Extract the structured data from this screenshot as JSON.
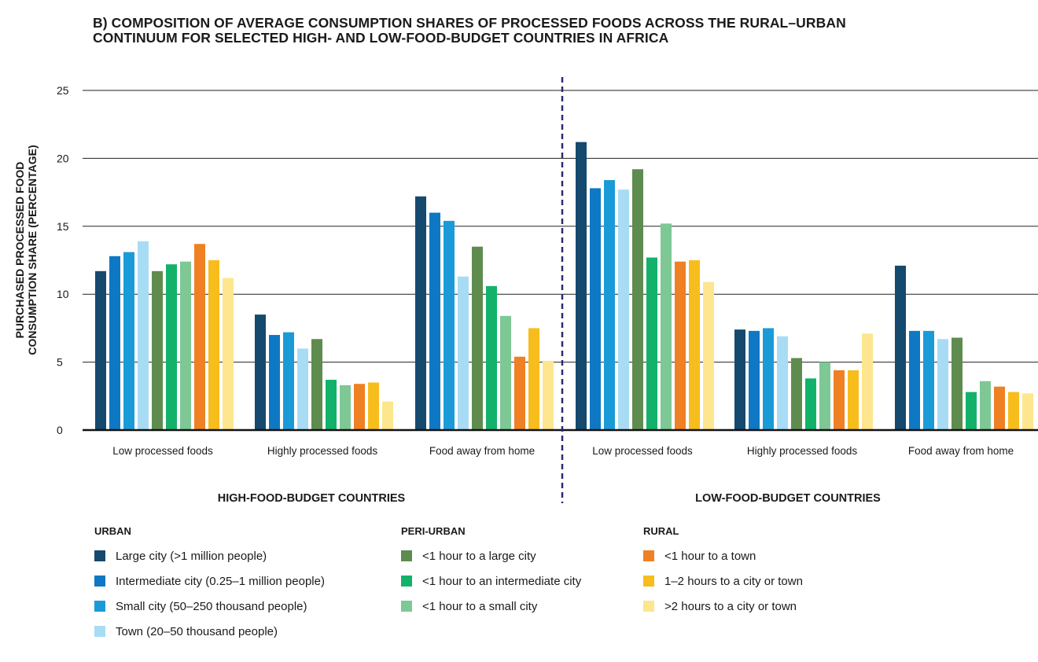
{
  "title_lines": [
    "B) COMPOSITION OF AVERAGE CONSUMPTION SHARES OF PROCESSED FOODS ACROSS THE RURAL–URBAN",
    "CONTINUUM FOR SELECTED HIGH- AND LOW-FOOD-BUDGET COUNTRIES IN AFRICA"
  ],
  "legend": {
    "groups": [
      {
        "heading": "URBAN",
        "items": [
          {
            "label": "Large city (>1 million people)",
            "color": "#16496e"
          },
          {
            "label": "Intermediate city (0.25–1 million people)",
            "color": "#0e78c4"
          },
          {
            "label": "Small city (50–250 thousand people)",
            "color": "#1a9bd7"
          },
          {
            "label": "Town (20–50 thousand people)",
            "color": "#a8dcf4"
          }
        ]
      },
      {
        "heading": "PERI-URBAN",
        "items": [
          {
            "label": "<1 hour to a large city",
            "color": "#5e8c4f"
          },
          {
            "label": "<1 hour to an intermediate city",
            "color": "#12b26a"
          },
          {
            "label": "<1 hour to a small city",
            "color": "#7dc895"
          }
        ]
      },
      {
        "heading": "RURAL",
        "items": [
          {
            "label": "<1 hour to a town",
            "color": "#ef8023"
          },
          {
            "label": "1–2 hours to a city or town",
            "color": "#f7bd1d"
          },
          {
            "label": ">2 hours to a city or town",
            "color": "#fde68e"
          }
        ]
      }
    ]
  },
  "chart_data": {
    "type": "bar",
    "ylabel_lines": [
      "PURCHASED PROCESSED FOOD",
      "CONSUMPTION SHARE (PERCENTAGE)"
    ],
    "ylim": [
      0,
      25
    ],
    "yticks": [
      0,
      5,
      10,
      15,
      20,
      25
    ],
    "grid": true,
    "groups": [
      {
        "label": "HIGH-FOOD-BUDGET COUNTRIES",
        "categories": [
          "Low processed foods",
          "Highly processed foods",
          "Food away from home"
        ]
      },
      {
        "label": "LOW-FOOD-BUDGET COUNTRIES",
        "categories": [
          "Low processed foods",
          "Highly processed foods",
          "Food away from home"
        ]
      }
    ],
    "series": [
      {
        "name": "Large city (>1 million people)",
        "color": "#16496e",
        "values": [
          11.7,
          8.5,
          17.2,
          21.2,
          7.4,
          12.1
        ]
      },
      {
        "name": "Intermediate city (0.25–1 million people)",
        "color": "#0e78c4",
        "values": [
          12.8,
          7.0,
          16.0,
          17.8,
          7.3,
          7.3
        ]
      },
      {
        "name": "Small city (50–250 thousand people)",
        "color": "#1a9bd7",
        "values": [
          13.1,
          7.2,
          15.4,
          18.4,
          7.5,
          7.3
        ]
      },
      {
        "name": "Town (20–50 thousand people)",
        "color": "#a8dcf4",
        "values": [
          13.9,
          6.0,
          11.3,
          17.7,
          6.9,
          6.7
        ]
      },
      {
        "name": "<1 hour to a large city",
        "color": "#5e8c4f",
        "values": [
          11.7,
          6.7,
          13.5,
          19.2,
          5.3,
          6.8
        ]
      },
      {
        "name": "<1 hour to an intermediate city",
        "color": "#12b26a",
        "values": [
          12.2,
          3.7,
          10.6,
          12.7,
          3.8,
          2.8
        ]
      },
      {
        "name": "<1 hour to a small city",
        "color": "#7dc895",
        "values": [
          12.4,
          3.3,
          8.4,
          15.2,
          5.0,
          3.6
        ]
      },
      {
        "name": "<1 hour to a town",
        "color": "#ef8023",
        "values": [
          13.7,
          3.4,
          5.4,
          12.4,
          4.4,
          3.2
        ]
      },
      {
        "name": "1–2 hours to a city or town",
        "color": "#f7bd1d",
        "values": [
          12.5,
          3.5,
          7.5,
          12.5,
          4.4,
          2.8
        ]
      },
      {
        "name": ">2 hours to a city or town",
        "color": "#fde68e",
        "values": [
          11.2,
          2.1,
          5.1,
          10.9,
          7.1,
          2.7
        ]
      }
    ]
  }
}
